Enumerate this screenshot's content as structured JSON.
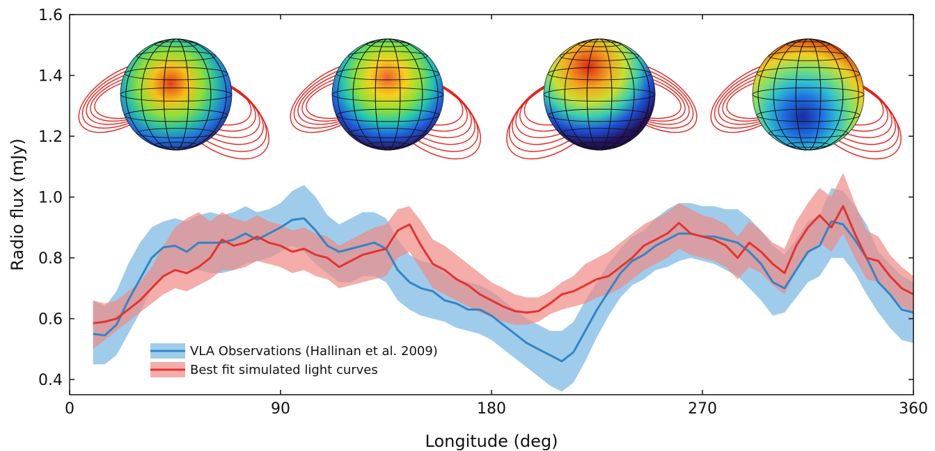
{
  "chart_data": {
    "type": "line",
    "title": "",
    "xlabel": "Longitude (deg)",
    "ylabel": "Radio flux (mJy)",
    "xlim": [
      0,
      360
    ],
    "ylim": [
      0.35,
      1.6
    ],
    "xticks": [
      0,
      90,
      180,
      270,
      360
    ],
    "xtick_labels": [
      "0",
      "90",
      "180",
      "270",
      "360"
    ],
    "yticks": [
      0.4,
      0.6,
      0.8,
      1.0,
      1.2,
      1.4,
      1.6
    ],
    "ytick_labels": [
      "0.4",
      "0.6",
      "0.8",
      "1.0",
      "1.2",
      "1.4",
      "1.6"
    ],
    "grid": false,
    "legend_position": "lower-left",
    "series": [
      {
        "name": "VLA Observations (Hallinan et al. 2009)",
        "color": "#2e86c8",
        "band_color": "#8ec3e8",
        "x": [
          10,
          15,
          20,
          25,
          30,
          35,
          40,
          45,
          50,
          55,
          60,
          65,
          70,
          75,
          80,
          85,
          90,
          95,
          100,
          105,
          110,
          115,
          120,
          125,
          130,
          135,
          140,
          145,
          150,
          155,
          160,
          165,
          170,
          175,
          180,
          185,
          190,
          195,
          200,
          205,
          210,
          215,
          220,
          225,
          230,
          235,
          240,
          245,
          250,
          255,
          260,
          265,
          270,
          275,
          280,
          285,
          290,
          295,
          300,
          305,
          310,
          315,
          320,
          325,
          330,
          335,
          340,
          345,
          350,
          355,
          360
        ],
        "y": [
          0.55,
          0.545,
          0.58,
          0.66,
          0.73,
          0.8,
          0.835,
          0.84,
          0.82,
          0.85,
          0.85,
          0.85,
          0.86,
          0.88,
          0.86,
          0.88,
          0.9,
          0.925,
          0.93,
          0.89,
          0.84,
          0.82,
          0.83,
          0.84,
          0.85,
          0.83,
          0.76,
          0.72,
          0.7,
          0.69,
          0.66,
          0.65,
          0.63,
          0.63,
          0.61,
          0.58,
          0.55,
          0.52,
          0.5,
          0.48,
          0.46,
          0.49,
          0.56,
          0.63,
          0.69,
          0.75,
          0.79,
          0.81,
          0.84,
          0.86,
          0.88,
          0.88,
          0.87,
          0.87,
          0.86,
          0.85,
          0.82,
          0.78,
          0.72,
          0.7,
          0.76,
          0.82,
          0.84,
          0.92,
          0.91,
          0.86,
          0.8,
          0.72,
          0.68,
          0.63,
          0.62
        ],
        "y_low": [
          0.45,
          0.45,
          0.48,
          0.55,
          0.62,
          0.7,
          0.74,
          0.76,
          0.76,
          0.76,
          0.75,
          0.75,
          0.76,
          0.78,
          0.79,
          0.8,
          0.82,
          0.84,
          0.82,
          0.78,
          0.75,
          0.72,
          0.72,
          0.74,
          0.74,
          0.72,
          0.66,
          0.63,
          0.61,
          0.6,
          0.59,
          0.57,
          0.56,
          0.55,
          0.53,
          0.5,
          0.47,
          0.44,
          0.41,
          0.38,
          0.36,
          0.39,
          0.46,
          0.54,
          0.61,
          0.67,
          0.71,
          0.73,
          0.76,
          0.77,
          0.79,
          0.8,
          0.79,
          0.78,
          0.76,
          0.74,
          0.7,
          0.66,
          0.61,
          0.62,
          0.67,
          0.72,
          0.74,
          0.8,
          0.8,
          0.75,
          0.68,
          0.62,
          0.57,
          0.53,
          0.52
        ],
        "y_high": [
          0.66,
          0.64,
          0.69,
          0.78,
          0.85,
          0.9,
          0.92,
          0.93,
          0.92,
          0.94,
          0.95,
          0.94,
          0.95,
          0.97,
          0.95,
          0.96,
          0.98,
          1.02,
          1.04,
          1.0,
          0.94,
          0.91,
          0.93,
          0.95,
          0.95,
          0.93,
          0.86,
          0.81,
          0.79,
          0.78,
          0.75,
          0.73,
          0.72,
          0.71,
          0.69,
          0.66,
          0.63,
          0.6,
          0.58,
          0.56,
          0.56,
          0.59,
          0.66,
          0.72,
          0.78,
          0.83,
          0.87,
          0.89,
          0.93,
          0.96,
          0.98,
          0.98,
          0.97,
          0.97,
          0.96,
          0.96,
          0.93,
          0.89,
          0.84,
          0.81,
          0.86,
          0.92,
          0.94,
          1.03,
          1.02,
          0.97,
          0.91,
          0.82,
          0.78,
          0.74,
          0.72
        ]
      },
      {
        "name": "Best fit simulated light curves",
        "color": "#e5322d",
        "band_color": "#ef8a84",
        "x": [
          10,
          15,
          20,
          25,
          30,
          35,
          40,
          45,
          50,
          55,
          60,
          65,
          70,
          75,
          80,
          85,
          90,
          95,
          100,
          105,
          110,
          115,
          120,
          125,
          130,
          135,
          140,
          145,
          150,
          155,
          160,
          165,
          170,
          175,
          180,
          185,
          190,
          195,
          200,
          205,
          210,
          215,
          220,
          225,
          230,
          235,
          240,
          245,
          250,
          255,
          260,
          265,
          270,
          275,
          280,
          285,
          290,
          295,
          300,
          305,
          310,
          315,
          320,
          325,
          330,
          335,
          340,
          345,
          350,
          355,
          360
        ],
        "y": [
          0.585,
          0.59,
          0.6,
          0.63,
          0.66,
          0.7,
          0.74,
          0.76,
          0.75,
          0.77,
          0.8,
          0.86,
          0.84,
          0.85,
          0.87,
          0.85,
          0.84,
          0.82,
          0.83,
          0.81,
          0.8,
          0.77,
          0.79,
          0.81,
          0.82,
          0.83,
          0.89,
          0.91,
          0.84,
          0.78,
          0.76,
          0.73,
          0.71,
          0.68,
          0.66,
          0.64,
          0.625,
          0.62,
          0.625,
          0.65,
          0.68,
          0.69,
          0.71,
          0.73,
          0.74,
          0.77,
          0.8,
          0.84,
          0.86,
          0.88,
          0.915,
          0.88,
          0.87,
          0.86,
          0.84,
          0.8,
          0.85,
          0.82,
          0.78,
          0.75,
          0.84,
          0.9,
          0.94,
          0.9,
          0.97,
          0.88,
          0.8,
          0.79,
          0.74,
          0.7,
          0.68
        ],
        "y_low": [
          0.5,
          0.53,
          0.56,
          0.59,
          0.62,
          0.65,
          0.68,
          0.7,
          0.69,
          0.71,
          0.73,
          0.76,
          0.76,
          0.77,
          0.79,
          0.78,
          0.77,
          0.75,
          0.76,
          0.74,
          0.73,
          0.7,
          0.71,
          0.72,
          0.73,
          0.74,
          0.8,
          0.82,
          0.76,
          0.7,
          0.68,
          0.66,
          0.64,
          0.62,
          0.605,
          0.59,
          0.58,
          0.58,
          0.59,
          0.615,
          0.63,
          0.64,
          0.65,
          0.67,
          0.68,
          0.7,
          0.73,
          0.76,
          0.78,
          0.8,
          0.83,
          0.81,
          0.8,
          0.79,
          0.77,
          0.73,
          0.77,
          0.75,
          0.71,
          0.68,
          0.76,
          0.81,
          0.85,
          0.82,
          0.88,
          0.8,
          0.73,
          0.72,
          0.68,
          0.64,
          0.62
        ],
        "y_high": [
          0.66,
          0.65,
          0.66,
          0.69,
          0.72,
          0.77,
          0.84,
          0.9,
          0.93,
          0.95,
          0.92,
          0.95,
          0.93,
          0.92,
          0.94,
          0.92,
          0.91,
          0.89,
          0.9,
          0.88,
          0.87,
          0.84,
          0.86,
          0.88,
          0.9,
          0.91,
          0.96,
          0.97,
          0.92,
          0.86,
          0.84,
          0.81,
          0.78,
          0.75,
          0.72,
          0.7,
          0.68,
          0.67,
          0.67,
          0.69,
          0.72,
          0.74,
          0.78,
          0.8,
          0.82,
          0.85,
          0.88,
          0.91,
          0.93,
          0.95,
          0.98,
          0.96,
          0.94,
          0.93,
          0.91,
          0.87,
          0.92,
          0.89,
          0.85,
          0.83,
          0.92,
          0.98,
          1.03,
          1.0,
          1.08,
          0.98,
          0.89,
          0.87,
          0.81,
          0.77,
          0.74
        ]
      }
    ],
    "insets": [
      {
        "type": "image",
        "description_name": "globe-inset-1"
      },
      {
        "type": "image",
        "description_name": "globe-inset-2"
      },
      {
        "type": "image",
        "description_name": "globe-inset-3"
      },
      {
        "type": "image",
        "description_name": "globe-inset-4"
      }
    ]
  }
}
